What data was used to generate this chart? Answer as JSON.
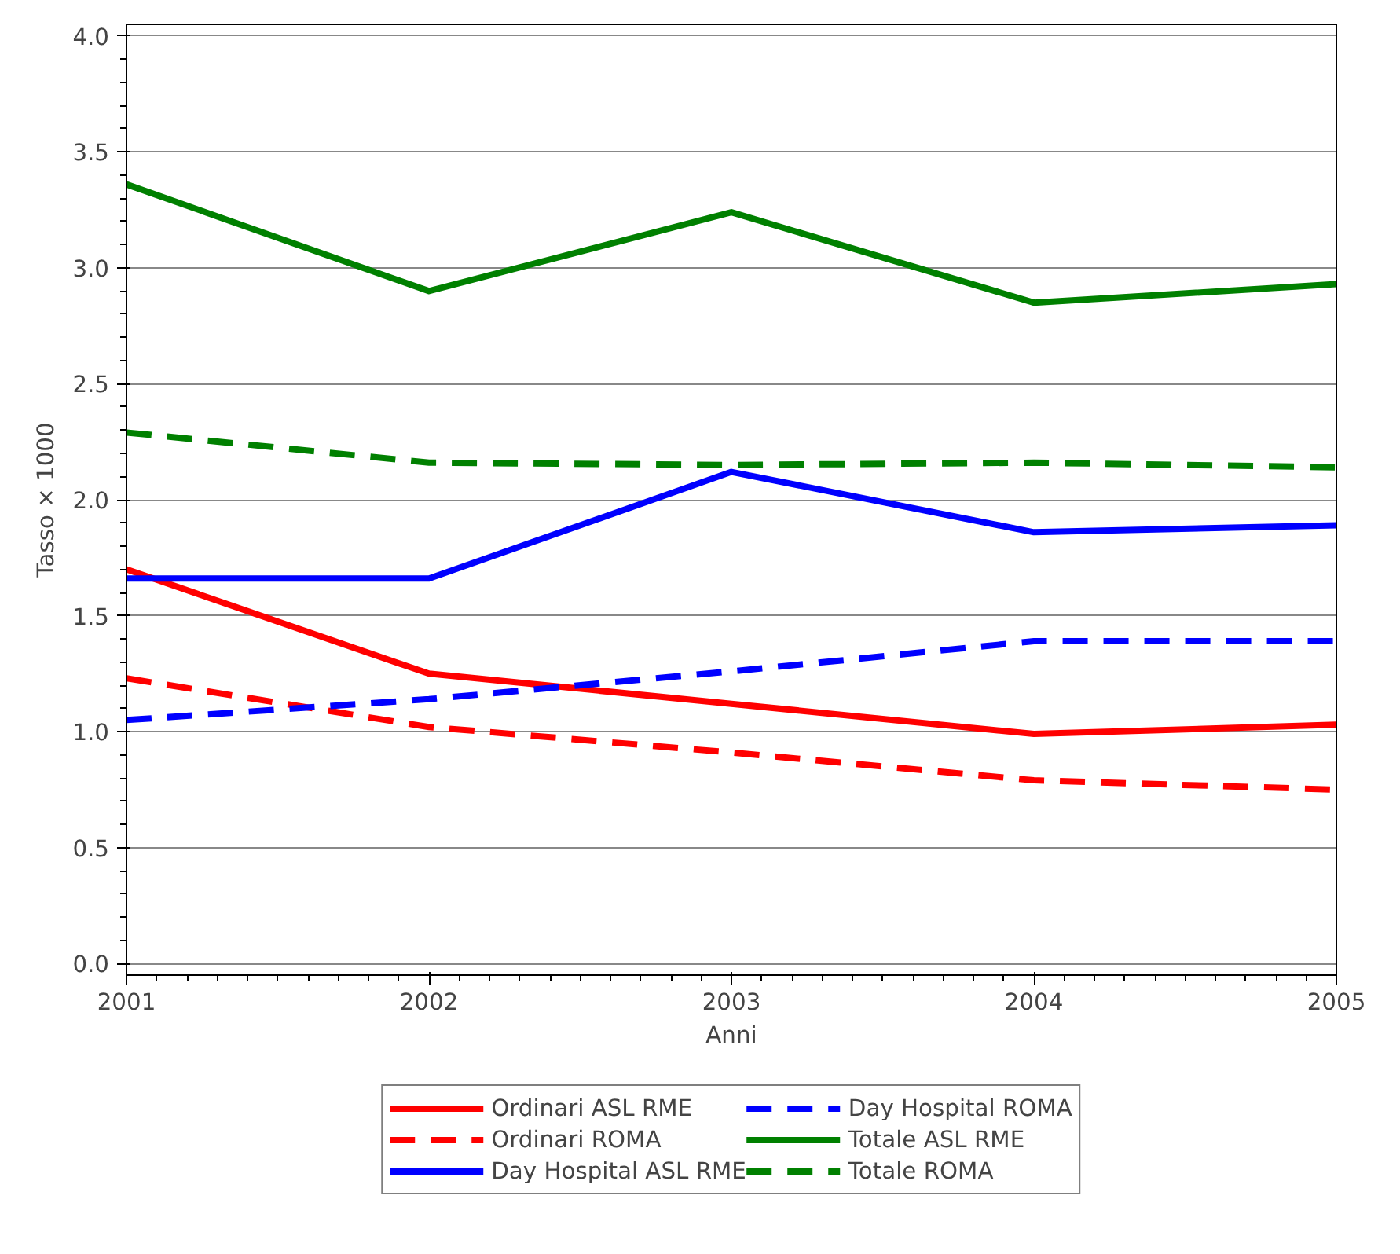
{
  "chart_data": {
    "type": "line",
    "xlabel": "Anni",
    "ylabel": "Tasso × 1000",
    "x": [
      2001,
      2002,
      2003,
      2004,
      2005
    ],
    "xlim": [
      2001,
      2005
    ],
    "xticks": [
      2001,
      2002,
      2003,
      2004,
      2005
    ],
    "ylim": [
      -0.05,
      4.05
    ],
    "yticks": [
      {
        "value": 0,
        "label": "0.0"
      },
      {
        "value": 0.5,
        "label": "0.5"
      },
      {
        "value": 1,
        "label": "1.0"
      },
      {
        "value": 1.5,
        "label": "1.5"
      },
      {
        "value": 2,
        "label": "2.0"
      },
      {
        "value": 2.5,
        "label": "2.5"
      },
      {
        "value": 3,
        "label": "3.0"
      },
      {
        "value": 3.5,
        "label": "3.5"
      },
      {
        "value": 4,
        "label": "4.0"
      }
    ],
    "grid": "y",
    "legend": "bottom",
    "marker": "none",
    "series": [
      {
        "name": "Ordinari ASL RME",
        "color": "#ff0000",
        "line_style": "solid",
        "values": [
          1.7,
          1.25,
          1.12,
          0.99,
          1.03
        ]
      },
      {
        "name": "Ordinari ROMA",
        "color": "#ff0000",
        "line_style": "dashed",
        "values": [
          1.23,
          1.02,
          0.91,
          0.79,
          0.75
        ]
      },
      {
        "name": "Day Hospital ASL RME",
        "color": "#0000ff",
        "line_style": "solid",
        "values": [
          1.66,
          1.66,
          2.12,
          1.86,
          1.89
        ]
      },
      {
        "name": "Day Hospital ROMA",
        "color": "#0000ff",
        "line_style": "dashed",
        "values": [
          1.05,
          1.14,
          1.26,
          1.39,
          1.39
        ]
      },
      {
        "name": "Totale ASL RME",
        "color": "#008000",
        "line_style": "solid",
        "values": [
          3.36,
          2.9,
          3.24,
          2.85,
          2.93
        ]
      },
      {
        "name": "Totale ROMA",
        "color": "#008000",
        "line_style": "dashed",
        "values": [
          2.29,
          2.16,
          2.15,
          2.16,
          2.14
        ]
      }
    ]
  }
}
